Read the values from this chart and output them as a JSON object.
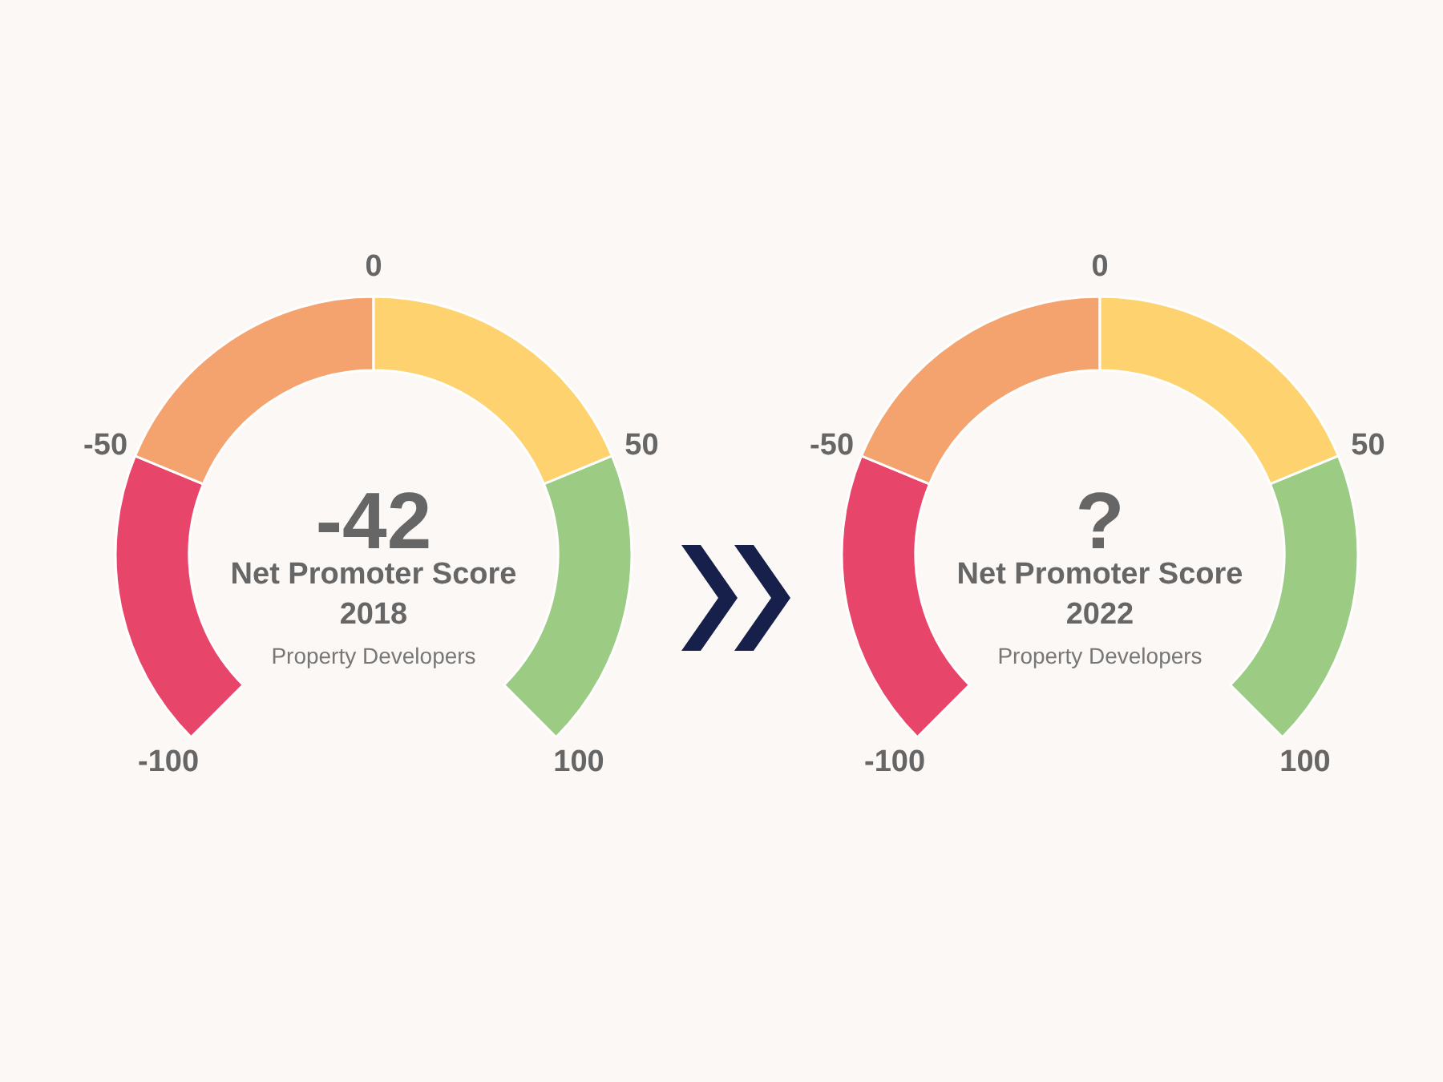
{
  "chart_data": [
    {
      "type": "donut",
      "title": "Net Promoter Score",
      "subtitle": "2018",
      "categories": [
        null,
        null,
        null,
        null
      ],
      "values": [
        25,
        25,
        25,
        25
      ],
      "colors": [
        "#e8456a",
        "#f5a36e",
        "#fdd26f",
        "#9ccc84"
      ],
      "annotations": [
        "-42",
        "Property Developers",
        "-100",
        "-50",
        "0",
        "50",
        "100"
      ]
    },
    {
      "type": "donut",
      "title": "Net Promoter Score",
      "subtitle": "2022",
      "categories": [
        null,
        null,
        null,
        null
      ],
      "values": [
        25,
        25,
        25,
        25
      ],
      "colors": [
        "#e8456a",
        "#f5a36e",
        "#fdd26f",
        "#9ccc84"
      ],
      "annotations": [
        "?",
        "Property Developers",
        "-100",
        "-50",
        "0",
        "50",
        "100"
      ]
    }
  ]
}
